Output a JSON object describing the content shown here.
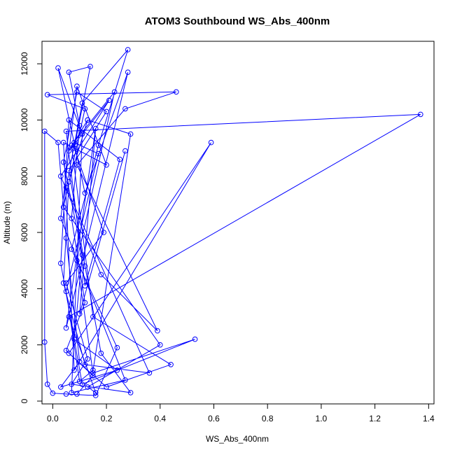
{
  "chart_data": {
    "type": "line",
    "title": "ATOM3 Southbound WS_Abs_400nm",
    "xlabel": "WS_Abs_400nm",
    "ylabel": "Altitude (m)",
    "xlim": [
      -0.04,
      1.42
    ],
    "ylim": [
      -100,
      12800
    ],
    "xticks": [
      0.0,
      0.2,
      0.4,
      0.6,
      0.8,
      1.0,
      1.2,
      1.4
    ],
    "xtick_labels": [
      "0.0",
      "0.2",
      "0.4",
      "0.6",
      "0.8",
      "1.0",
      "1.2",
      "1.4"
    ],
    "yticks": [
      0,
      2000,
      4000,
      6000,
      8000,
      10000,
      12000
    ],
    "ytick_labels": [
      "0",
      "2000",
      "4000",
      "6000",
      "8000",
      "10000",
      "12000"
    ],
    "grid": false,
    "series": [
      {
        "color": "#0000ff",
        "marker": "open-circle",
        "points": [
          [
            0.09,
            250
          ],
          [
            0.15,
            900
          ],
          [
            0.05,
            1800
          ],
          [
            0.12,
            3500
          ],
          [
            0.07,
            6500
          ],
          [
            0.1,
            9800
          ],
          [
            0.06,
            11700
          ],
          [
            0.14,
            11900
          ],
          [
            0.08,
            9000
          ],
          [
            0.19,
            6000
          ],
          [
            0.05,
            4200
          ],
          [
            0.13,
            1500
          ],
          [
            0.07,
            600
          ],
          [
            0.29,
            300
          ],
          [
            0.18,
            1700
          ],
          [
            0.12,
            4800
          ],
          [
            0.06,
            8200
          ],
          [
            0.2,
            10300
          ],
          [
            0.09,
            11000
          ],
          [
            0.04,
            8500
          ],
          [
            0.11,
            5200
          ],
          [
            0.08,
            2200
          ],
          [
            0.24,
            1100
          ],
          [
            0.03,
            500
          ],
          [
            0.1,
            1400
          ],
          [
            0.05,
            5800
          ],
          [
            0.02,
            9200
          ],
          [
            -0.03,
            9600
          ],
          [
            -0.03,
            2100
          ],
          [
            -0.02,
            600
          ],
          [
            0.0,
            280
          ],
          [
            0.05,
            250
          ],
          [
            0.16,
            200
          ],
          [
            0.24,
            1900
          ],
          [
            0.07,
            5400
          ],
          [
            0.17,
            9100
          ],
          [
            0.28,
            12500
          ],
          [
            0.11,
            10600
          ],
          [
            0.05,
            7600
          ],
          [
            0.36,
            1000
          ],
          [
            0.12,
            1300
          ],
          [
            0.04,
            4200
          ],
          [
            0.06,
            7800
          ],
          [
            0.13,
            10000
          ],
          [
            0.08,
            9200
          ],
          [
            0.17,
            8800
          ],
          [
            0.05,
            3900
          ],
          [
            0.1,
            700
          ],
          [
            0.15,
            1100
          ],
          [
            0.29,
            9500
          ],
          [
            0.13,
            10000
          ],
          [
            0.06,
            8900
          ],
          [
            0.21,
            10700
          ],
          [
            0.03,
            8000
          ],
          [
            0.18,
            4500
          ],
          [
            0.39,
            2500
          ],
          [
            0.09,
            8400
          ],
          [
            0.27,
            10400
          ],
          [
            0.46,
            11000
          ],
          [
            -0.02,
            10900
          ],
          [
            0.12,
            10400
          ],
          [
            0.04,
            6900
          ],
          [
            0.4,
            2000
          ],
          [
            0.13,
            500
          ],
          [
            0.16,
            300
          ],
          [
            0.06,
            3000
          ],
          [
            1.37,
            10200
          ],
          [
            0.05,
            9600
          ],
          [
            0.12,
            4100
          ],
          [
            0.25,
            8600
          ],
          [
            0.06,
            10000
          ],
          [
            0.03,
            4900
          ],
          [
            0.11,
            600
          ],
          [
            0.53,
            2200
          ],
          [
            0.15,
            1000
          ],
          [
            0.09,
            5000
          ],
          [
            0.23,
            11000
          ],
          [
            0.07,
            9100
          ],
          [
            0.15,
            3000
          ],
          [
            0.44,
            1300
          ],
          [
            0.2,
            500
          ],
          [
            0.06,
            1700
          ],
          [
            0.59,
            9200
          ],
          [
            0.08,
            1100
          ],
          [
            0.04,
            9200
          ],
          [
            0.2,
            8400
          ],
          [
            0.09,
            11200
          ],
          [
            0.03,
            6500
          ],
          [
            0.27,
            750
          ],
          [
            0.07,
            300
          ],
          [
            0.11,
            9500
          ],
          [
            0.02,
            11850
          ],
          [
            0.12,
            7400
          ],
          [
            0.28,
            11700
          ],
          [
            0.05,
            2600
          ],
          [
            0.16,
            9700
          ],
          [
            0.1,
            3100
          ],
          [
            0.27,
            8900
          ]
        ]
      }
    ]
  }
}
